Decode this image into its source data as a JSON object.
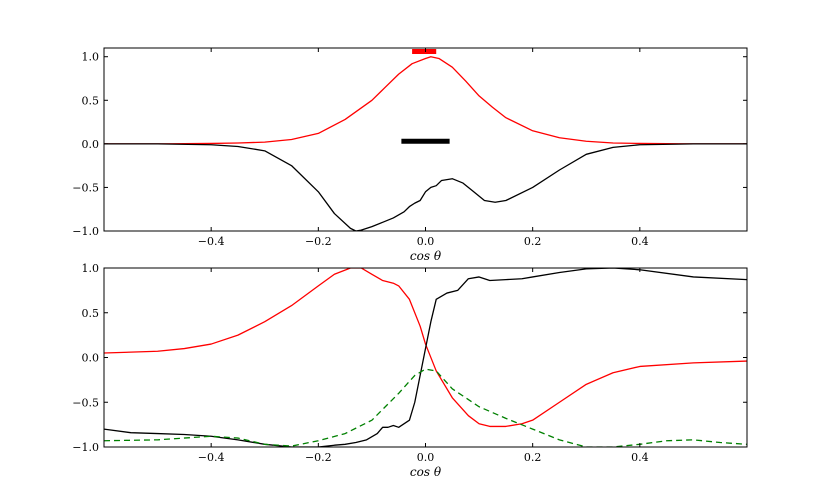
{
  "chart_data": [
    {
      "type": "line",
      "xlabel": "cos θ",
      "ylabel": "",
      "xlim": [
        -0.6,
        0.6
      ],
      "ylim": [
        -1.0,
        1.1
      ],
      "xticks": [
        -0.4,
        -0.2,
        0.0,
        0.2,
        0.4
      ],
      "xtick_labels": [
        "−0.4",
        "−0.2",
        "0.0",
        "0.2",
        "0.4"
      ],
      "yticks": [
        -1.0,
        -0.5,
        0.0,
        0.5,
        1.0
      ],
      "ytick_labels": [
        "−1.0",
        "−0.5",
        "0.0",
        "0.5",
        "1.0"
      ],
      "grid": false,
      "series": [
        {
          "color": "#ff0000",
          "style": "solid",
          "x": [
            -0.6,
            -0.5,
            -0.4,
            -0.35,
            -0.3,
            -0.25,
            -0.2,
            -0.15,
            -0.1,
            -0.075,
            -0.05,
            -0.025,
            0.0,
            0.01,
            0.025,
            0.05,
            0.075,
            0.1,
            0.125,
            0.15,
            0.2,
            0.25,
            0.3,
            0.35,
            0.4,
            0.5,
            0.6
          ],
          "y": [
            0.0,
            0.0,
            0.005,
            0.01,
            0.02,
            0.05,
            0.12,
            0.28,
            0.5,
            0.65,
            0.8,
            0.92,
            0.98,
            1.0,
            0.98,
            0.88,
            0.72,
            0.55,
            0.42,
            0.3,
            0.15,
            0.07,
            0.03,
            0.01,
            0.005,
            0.0,
            0.0
          ]
        },
        {
          "color": "#000000",
          "style": "solid",
          "x": [
            -0.6,
            -0.5,
            -0.4,
            -0.35,
            -0.3,
            -0.25,
            -0.2,
            -0.17,
            -0.14,
            -0.13,
            -0.12,
            -0.1,
            -0.08,
            -0.06,
            -0.04,
            -0.03,
            -0.02,
            -0.01,
            0.0,
            0.01,
            0.02,
            0.03,
            0.05,
            0.07,
            0.09,
            0.11,
            0.13,
            0.15,
            0.2,
            0.25,
            0.3,
            0.35,
            0.4,
            0.5,
            0.6
          ],
          "y": [
            0.0,
            0.0,
            -0.01,
            -0.03,
            -0.08,
            -0.25,
            -0.55,
            -0.8,
            -0.97,
            -1.0,
            -0.99,
            -0.95,
            -0.9,
            -0.85,
            -0.78,
            -0.72,
            -0.68,
            -0.65,
            -0.55,
            -0.5,
            -0.48,
            -0.42,
            -0.4,
            -0.45,
            -0.55,
            -0.65,
            -0.67,
            -0.65,
            -0.5,
            -0.3,
            -0.12,
            -0.04,
            -0.01,
            0.0,
            0.0
          ]
        }
      ],
      "bars": [
        {
          "color": "#ff0000",
          "x0": -0.025,
          "x1": 0.02,
          "y": 1.06
        },
        {
          "color": "#000000",
          "x0": -0.045,
          "x1": 0.045,
          "y": 0.03
        }
      ]
    },
    {
      "type": "line",
      "xlabel": "cos θ",
      "ylabel": "",
      "xlim": [
        -0.6,
        0.6
      ],
      "ylim": [
        -1.0,
        1.0
      ],
      "xticks": [
        -0.4,
        -0.2,
        0.0,
        0.2,
        0.4
      ],
      "xtick_labels": [
        "−0.4",
        "−0.2",
        "0.0",
        "0.2",
        "0.4"
      ],
      "yticks": [
        -1.0,
        -0.5,
        0.0,
        0.5,
        1.0
      ],
      "ytick_labels": [
        "−1.0",
        "−0.5",
        "0.0",
        "0.5",
        "1.0"
      ],
      "grid": false,
      "series": [
        {
          "color": "#ff0000",
          "style": "solid",
          "x": [
            -0.6,
            -0.5,
            -0.45,
            -0.4,
            -0.35,
            -0.3,
            -0.25,
            -0.2,
            -0.17,
            -0.14,
            -0.12,
            -0.1,
            -0.08,
            -0.06,
            -0.05,
            -0.03,
            -0.01,
            0.0,
            0.02,
            0.05,
            0.08,
            0.1,
            0.12,
            0.15,
            0.18,
            0.2,
            0.25,
            0.3,
            0.35,
            0.4,
            0.5,
            0.6
          ],
          "y": [
            0.05,
            0.07,
            0.1,
            0.15,
            0.25,
            0.4,
            0.58,
            0.8,
            0.93,
            1.0,
            1.0,
            0.93,
            0.86,
            0.83,
            0.8,
            0.65,
            0.35,
            0.15,
            -0.15,
            -0.45,
            -0.65,
            -0.74,
            -0.77,
            -0.77,
            -0.74,
            -0.7,
            -0.5,
            -0.3,
            -0.17,
            -0.1,
            -0.06,
            -0.04
          ]
        },
        {
          "color": "#000000",
          "style": "solid",
          "x": [
            -0.6,
            -0.55,
            -0.5,
            -0.45,
            -0.4,
            -0.35,
            -0.3,
            -0.25,
            -0.2,
            -0.17,
            -0.15,
            -0.13,
            -0.11,
            -0.09,
            -0.08,
            -0.07,
            -0.06,
            -0.05,
            -0.03,
            -0.02,
            -0.01,
            0.0,
            0.01,
            0.02,
            0.04,
            0.06,
            0.08,
            0.1,
            0.12,
            0.15,
            0.18,
            0.2,
            0.25,
            0.3,
            0.35,
            0.4,
            0.5,
            0.6
          ],
          "y": [
            -0.8,
            -0.84,
            -0.85,
            -0.86,
            -0.88,
            -0.92,
            -0.97,
            -1.0,
            -1.0,
            -0.98,
            -0.97,
            -0.95,
            -0.92,
            -0.85,
            -0.78,
            -0.78,
            -0.76,
            -0.78,
            -0.7,
            -0.5,
            -0.2,
            0.1,
            0.4,
            0.65,
            0.72,
            0.75,
            0.88,
            0.9,
            0.86,
            0.87,
            0.88,
            0.9,
            0.95,
            0.99,
            1.0,
            0.98,
            0.9,
            0.87
          ]
        },
        {
          "color": "#008000",
          "style": "dashed",
          "x": [
            -0.6,
            -0.5,
            -0.4,
            -0.35,
            -0.3,
            -0.25,
            -0.2,
            -0.15,
            -0.1,
            -0.05,
            -0.02,
            0.0,
            0.02,
            0.05,
            0.1,
            0.15,
            0.2,
            0.25,
            0.3,
            0.35,
            0.4,
            0.45,
            0.5,
            0.55,
            0.6
          ],
          "y": [
            -0.93,
            -0.92,
            -0.88,
            -0.9,
            -0.97,
            -0.99,
            -0.93,
            -0.85,
            -0.7,
            -0.4,
            -0.2,
            -0.13,
            -0.15,
            -0.35,
            -0.55,
            -0.68,
            -0.8,
            -0.92,
            -1.0,
            -1.0,
            -0.97,
            -0.93,
            -0.92,
            -0.95,
            -0.97
          ]
        }
      ]
    }
  ]
}
